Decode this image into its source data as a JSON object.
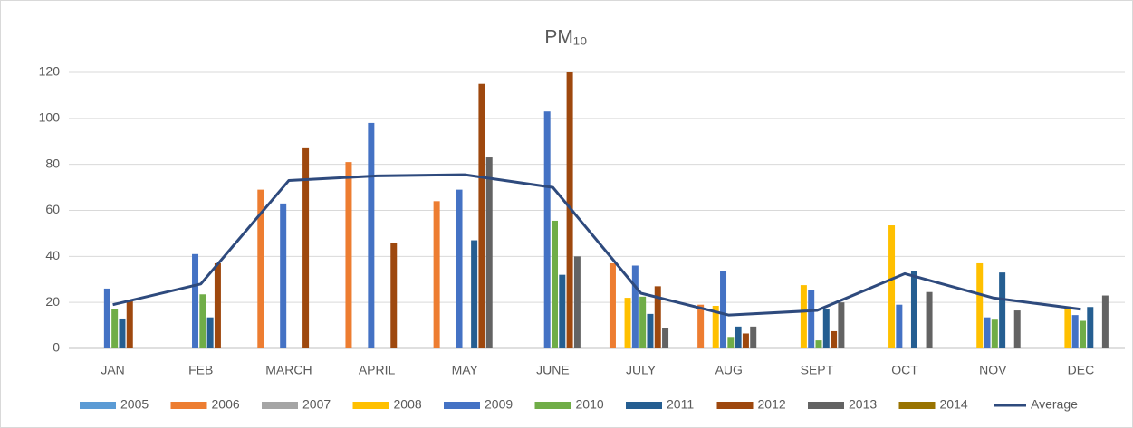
{
  "chart_data": {
    "type": "bar",
    "title": "PM₁₀",
    "categories": [
      "JAN",
      "FEB",
      "MARCH",
      "APRIL",
      "MAY",
      "JUNE",
      "JULY",
      "AUG",
      "SEPT",
      "OCT",
      "NOV",
      "DEC"
    ],
    "series": [
      {
        "name": "2005",
        "color": "#5b9bd5",
        "values": [
          null,
          null,
          null,
          null,
          null,
          null,
          null,
          null,
          null,
          null,
          null,
          null
        ]
      },
      {
        "name": "2006",
        "color": "#ed7d31",
        "values": [
          null,
          null,
          69,
          81,
          64,
          null,
          37,
          19,
          null,
          null,
          null,
          null
        ]
      },
      {
        "name": "2007",
        "color": "#a5a5a5",
        "values": [
          null,
          null,
          null,
          null,
          null,
          null,
          null,
          null,
          null,
          null,
          null,
          null
        ]
      },
      {
        "name": "2008",
        "color": "#ffc000",
        "values": [
          null,
          null,
          null,
          null,
          null,
          null,
          22,
          18.5,
          27.5,
          53.5,
          37,
          17.5
        ]
      },
      {
        "name": "2009",
        "color": "#4472c4",
        "values": [
          26,
          41,
          63,
          98,
          69,
          103,
          36,
          33.5,
          25.5,
          19,
          13.5,
          14.5
        ]
      },
      {
        "name": "2010",
        "color": "#70ad47",
        "values": [
          17,
          23.5,
          null,
          null,
          null,
          55.5,
          22.5,
          5,
          3.5,
          null,
          12.5,
          12
        ]
      },
      {
        "name": "2011",
        "color": "#255e91",
        "values": [
          13,
          13.5,
          null,
          null,
          47,
          32,
          15,
          9.5,
          17,
          33.5,
          33,
          18
        ]
      },
      {
        "name": "2012",
        "color": "#9e480e",
        "values": [
          21,
          37,
          87,
          46,
          115,
          120,
          27,
          6.5,
          7.5,
          null,
          null,
          null
        ]
      },
      {
        "name": "2013",
        "color": "#636363",
        "values": [
          null,
          null,
          null,
          null,
          83,
          40,
          9,
          9.5,
          20,
          24.5,
          16.5,
          23
        ]
      },
      {
        "name": "2014",
        "color": "#997300",
        "values": [
          null,
          null,
          null,
          null,
          null,
          null,
          null,
          null,
          null,
          null,
          null,
          null
        ]
      },
      {
        "name": "Average",
        "type": "line",
        "color": "#2e4a7d",
        "values": [
          19,
          28,
          73,
          75,
          75.5,
          70,
          24,
          14.5,
          16.5,
          32.5,
          22,
          17
        ]
      }
    ],
    "ylim": [
      0,
      120
    ],
    "yticks": [
      0,
      20,
      40,
      60,
      80,
      100,
      120
    ],
    "grid": true,
    "legend": "bottom"
  }
}
